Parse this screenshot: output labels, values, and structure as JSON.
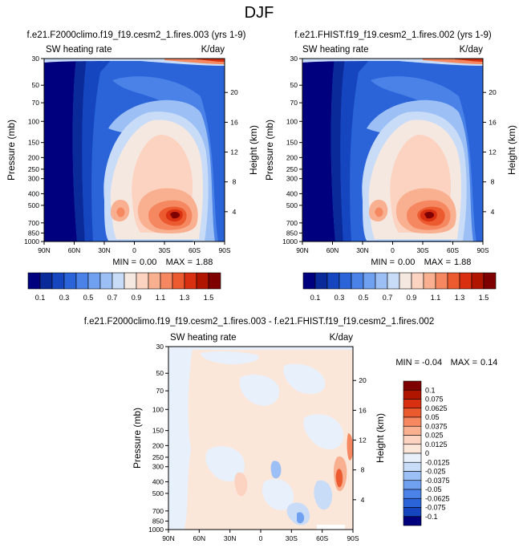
{
  "figure": {
    "title": "DJF"
  },
  "chart_data": [
    {
      "type": "heatmap",
      "title": "f.e21.F2000climo.f19_f19.cesm2_1.fires.003 (yrs 1-9)",
      "left_subtitle": "SW heating rate",
      "right_subtitle": "K/day",
      "ylabel": "Pressure (mb)",
      "ylabel_right": "Height (km)",
      "x_ticks": [
        "90N",
        "60N",
        "30N",
        "0",
        "30S",
        "60S",
        "90S"
      ],
      "y_ticks": [
        "30",
        "50",
        "70",
        "100",
        "150",
        "200",
        "250",
        "300",
        "400",
        "500",
        "700",
        "850",
        "1000"
      ],
      "y_right_ticks": [
        "20",
        "16",
        "12",
        "8",
        "4"
      ],
      "min_label": "MIN =",
      "min_value": "0.00",
      "max_label": "MAX =",
      "max_value": "1.88",
      "colorbar_labels": [
        "0.1",
        "0.3",
        "0.5",
        "0.7",
        "0.9",
        "1.1",
        "1.3",
        "1.5"
      ]
    },
    {
      "type": "heatmap",
      "title": "f.e21.FHIST.f19_f19.cesm2_1.fires.002 (yrs 1-9)",
      "left_subtitle": "SW heating rate",
      "right_subtitle": "K/day",
      "ylabel": "Pressure (mb)",
      "ylabel_right": "Height (km)",
      "x_ticks": [
        "90N",
        "60N",
        "30N",
        "0",
        "30S",
        "60S",
        "90S"
      ],
      "y_ticks": [
        "30",
        "50",
        "70",
        "100",
        "150",
        "200",
        "250",
        "300",
        "400",
        "500",
        "700",
        "850",
        "1000"
      ],
      "y_right_ticks": [
        "20",
        "16",
        "12",
        "8",
        "4"
      ],
      "min_label": "MIN =",
      "min_value": "0.00",
      "max_label": "MAX =",
      "max_value": "1.88",
      "colorbar_labels": [
        "0.1",
        "0.3",
        "0.5",
        "0.7",
        "0.9",
        "1.1",
        "1.3",
        "1.5"
      ]
    },
    {
      "type": "heatmap",
      "title": "f.e21.F2000climo.f19_f19.cesm2_1.fires.003 - f.e21.FHIST.f19_f19.cesm2_1.fires.002",
      "left_subtitle": "SW heating rate",
      "right_subtitle": "K/day",
      "ylabel": "Pressure (mb)",
      "ylabel_right": "Height (km)",
      "x_ticks": [
        "90N",
        "60N",
        "30N",
        "0",
        "30S",
        "60S",
        "90S"
      ],
      "y_ticks": [
        "30",
        "50",
        "70",
        "100",
        "150",
        "200",
        "250",
        "300",
        "400",
        "500",
        "700",
        "850",
        "1000"
      ],
      "y_right_ticks": [
        "20",
        "16",
        "12",
        "8",
        "4"
      ],
      "min_label": "MIN =",
      "min_value": "-0.04",
      "max_label": "MAX =",
      "max_value": "0.14",
      "colorbar_labels": [
        "0.1",
        "0.075",
        "0.0625",
        "0.05",
        "0.0375",
        "0.025",
        "0.0125",
        "0",
        "-0.0125",
        "-0.025",
        "-0.0375",
        "-0.05",
        "-0.0625",
        "-0.075",
        "-0.1"
      ]
    }
  ],
  "colors": {
    "abs_scale": [
      "#00007f",
      "#0a2a9a",
      "#1546c0",
      "#2a64d8",
      "#4a82e8",
      "#70a0f0",
      "#9cc0f5",
      "#c8dcf8",
      "#f5e8e0",
      "#fcd2c0",
      "#f9b090",
      "#f58860",
      "#ec5a30",
      "#d83010",
      "#b01500",
      "#7f0000"
    ],
    "diff_scale": [
      "#7f0000",
      "#b01500",
      "#d83010",
      "#ec5a30",
      "#f58860",
      "#f9b090",
      "#fcd2c0",
      "#fbe6da",
      "#e8f0fb",
      "#c8dcf8",
      "#9cc0f5",
      "#70a0f0",
      "#4a82e8",
      "#2a64d8",
      "#1546c0",
      "#00007f"
    ]
  }
}
